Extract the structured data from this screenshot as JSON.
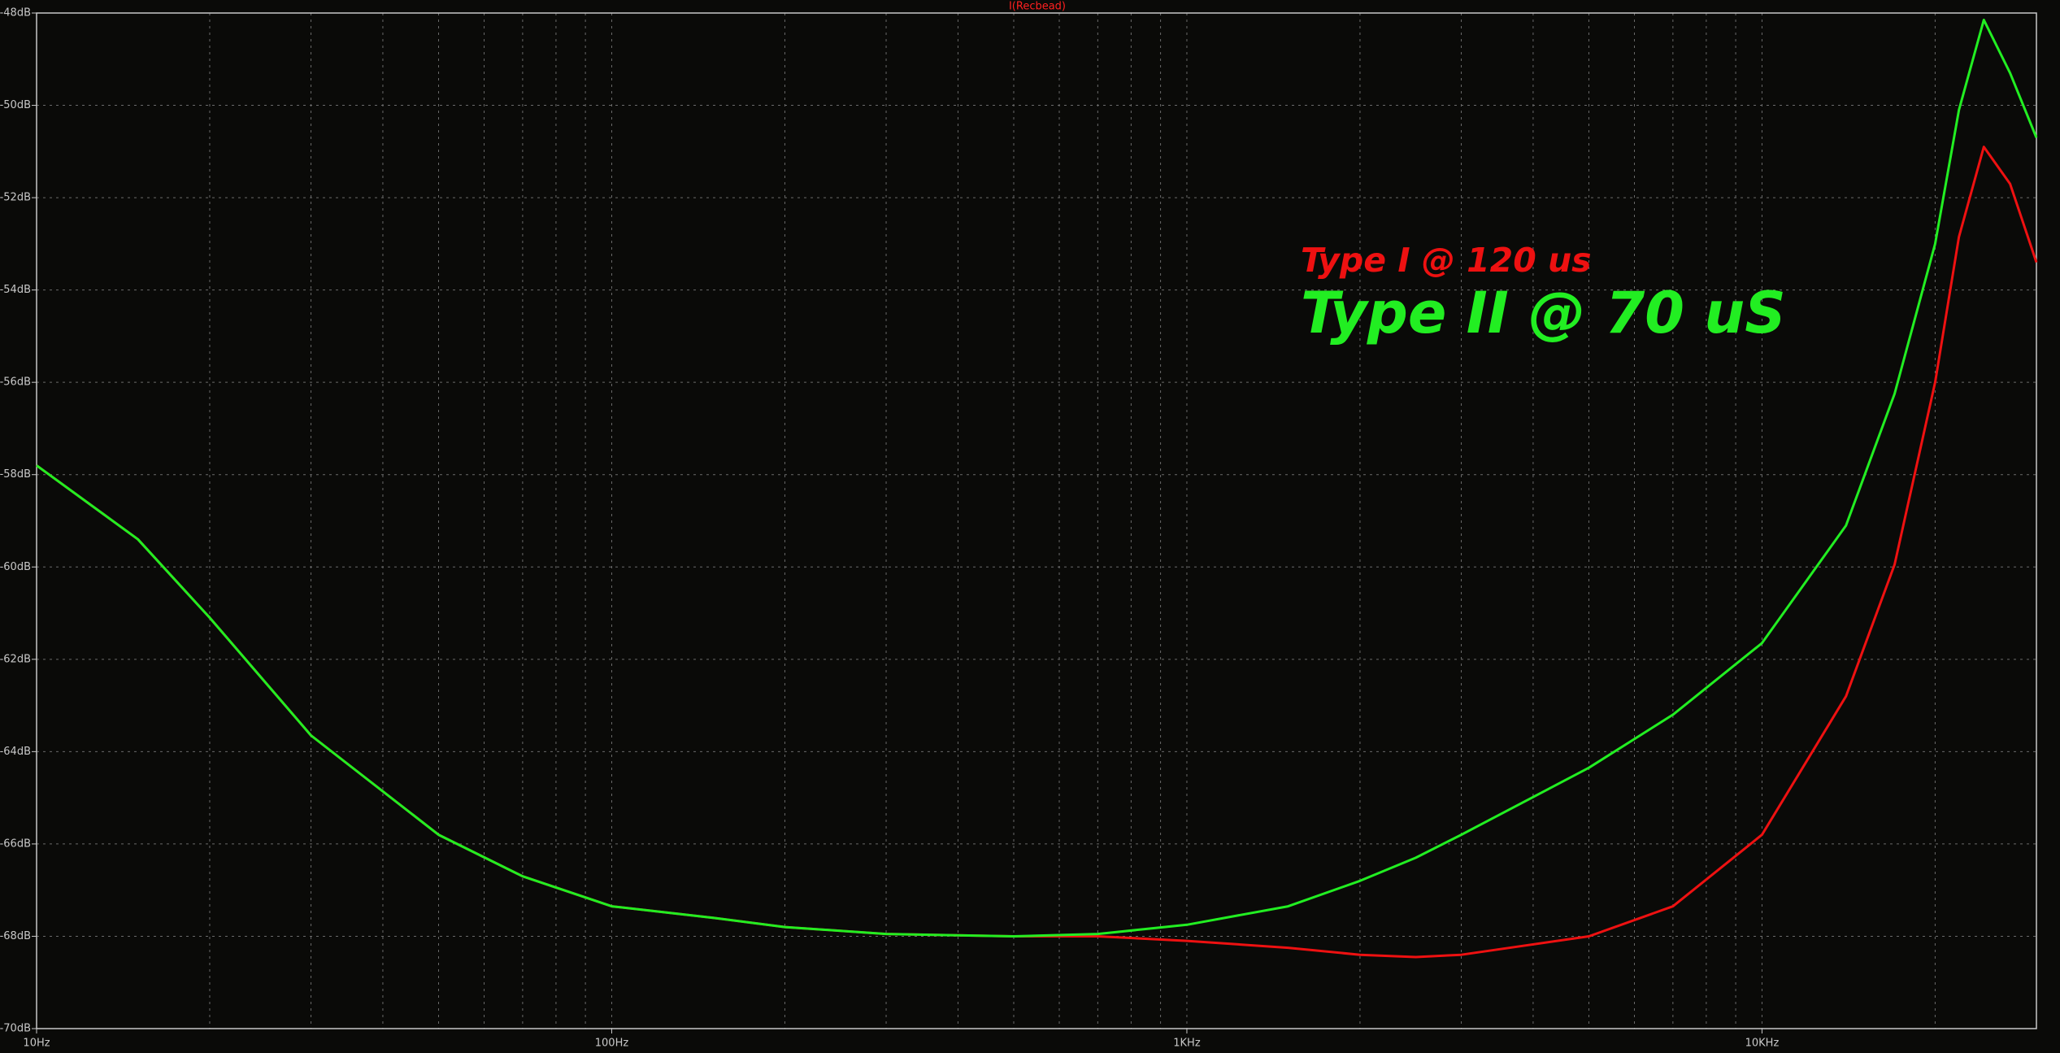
{
  "chart_data": {
    "type": "line",
    "title": "I(Recbead)",
    "title_color": "#ff2020",
    "x": [
      10,
      15,
      20,
      30,
      50,
      70,
      100,
      150,
      200,
      300,
      500,
      700,
      1000,
      1500,
      2000,
      2500,
      3000,
      5000,
      7000,
      10000,
      14000,
      17000,
      20000,
      22000,
      24300,
      27000,
      30000
    ],
    "series": [
      {
        "name": "Type I @ 120 us",
        "color": "#ee1111",
        "values": [
          -57.8,
          -59.4,
          -61.1,
          -63.65,
          -65.8,
          -66.7,
          -67.35,
          -67.6,
          -67.8,
          -67.95,
          -68.0,
          -68.0,
          -68.1,
          -68.25,
          -68.4,
          -68.45,
          -68.4,
          -68.0,
          -67.35,
          -65.8,
          -62.8,
          -59.95,
          -56.0,
          -52.85,
          -50.9,
          -51.7,
          -53.4
        ]
      },
      {
        "name": "Type II @ 70 uS",
        "color": "#22ee22",
        "values": [
          -57.8,
          -59.4,
          -61.1,
          -63.65,
          -65.8,
          -66.7,
          -67.35,
          -67.6,
          -67.8,
          -67.95,
          -68.0,
          -67.95,
          -67.75,
          -67.35,
          -66.8,
          -66.3,
          -65.8,
          -64.35,
          -63.2,
          -61.65,
          -59.1,
          -56.25,
          -53.0,
          -50.1,
          -48.15,
          -49.3,
          -50.7
        ]
      }
    ],
    "xscale": "log",
    "xlim": [
      10,
      30000
    ],
    "xticks": [
      {
        "value": 10,
        "label": "10Hz"
      },
      {
        "value": 100,
        "label": "100Hz"
      },
      {
        "value": 1000,
        "label": "1KHz"
      },
      {
        "value": 10000,
        "label": "10KHz"
      }
    ],
    "xminorticks": [
      20,
      30,
      40,
      50,
      60,
      70,
      80,
      90,
      200,
      300,
      400,
      500,
      600,
      700,
      800,
      900,
      2000,
      3000,
      4000,
      5000,
      6000,
      7000,
      8000,
      9000,
      20000,
      30000
    ],
    "ylim": [
      -70,
      -48
    ],
    "yticks": [
      {
        "value": -48,
        "label": "-48dB"
      },
      {
        "value": -50,
        "label": "-50dB"
      },
      {
        "value": -52,
        "label": "-52dB"
      },
      {
        "value": -54,
        "label": "-54dB"
      },
      {
        "value": -56,
        "label": "-56dB"
      },
      {
        "value": -58,
        "label": "-58dB"
      },
      {
        "value": -60,
        "label": "-60dB"
      },
      {
        "value": -62,
        "label": "-62dB"
      },
      {
        "value": -64,
        "label": "-64dB"
      },
      {
        "value": -66,
        "label": "-66dB"
      },
      {
        "value": -68,
        "label": "-68dB"
      },
      {
        "value": -70,
        "label": "-70dB"
      }
    ],
    "grid": true
  }
}
